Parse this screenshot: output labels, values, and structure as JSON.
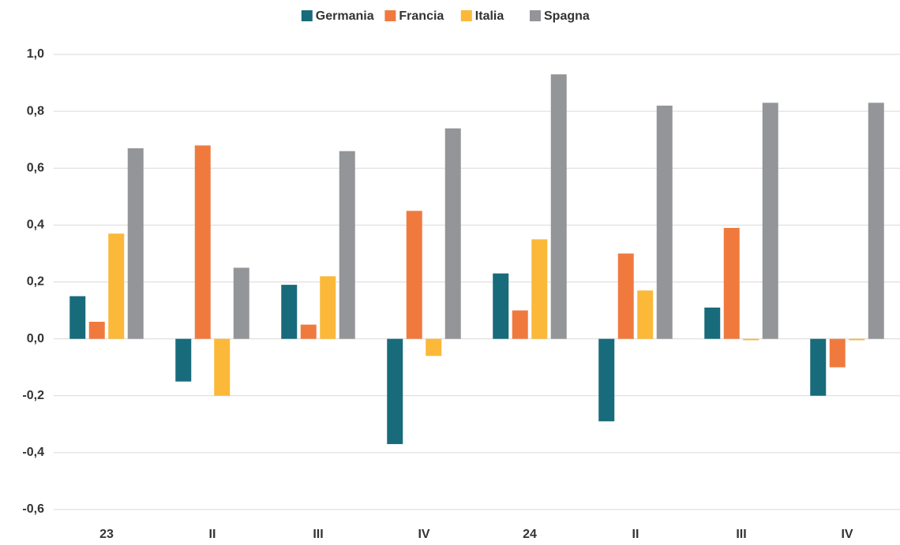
{
  "chart_data": {
    "type": "bar",
    "categories": [
      "23",
      "II",
      "III",
      "IV",
      "24",
      "II",
      "III",
      "IV"
    ],
    "series": [
      {
        "name": "Germania",
        "color": "#186b7b",
        "values": [
          0.15,
          -0.15,
          0.19,
          -0.37,
          0.23,
          -0.29,
          0.11,
          -0.2
        ]
      },
      {
        "name": "Francia",
        "color": "#f07a3e",
        "values": [
          0.06,
          0.68,
          0.05,
          0.45,
          0.1,
          0.3,
          0.39,
          -0.1
        ]
      },
      {
        "name": "Italia",
        "color": "#fbb839",
        "values": [
          0.37,
          -0.2,
          0.22,
          -0.06,
          0.35,
          0.17,
          -0.005,
          -0.005
        ]
      },
      {
        "name": "Spagna",
        "color": "#939598",
        "values": [
          0.67,
          0.25,
          0.66,
          0.74,
          0.93,
          0.82,
          0.83,
          0.83
        ]
      }
    ],
    "ylim": [
      -0.6,
      1.0
    ],
    "yticks": [
      {
        "value": -0.6,
        "label": "-0,6"
      },
      {
        "value": -0.4,
        "label": "-0,4"
      },
      {
        "value": -0.2,
        "label": "-0,2"
      },
      {
        "value": 0,
        "label": "0,0"
      },
      {
        "value": 0.2,
        "label": "0,2"
      },
      {
        "value": 0.4,
        "label": "0,4"
      },
      {
        "value": 0.6,
        "label": "0,6"
      },
      {
        "value": 0.8,
        "label": "0,8"
      },
      {
        "value": 1.0,
        "label": "1,0"
      }
    ],
    "grid": true,
    "legend": "top"
  }
}
